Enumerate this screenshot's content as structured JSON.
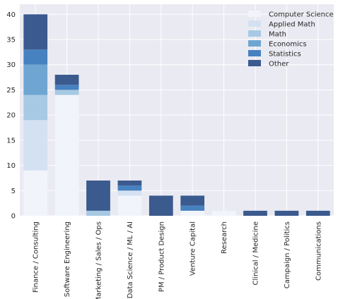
{
  "chart_data": {
    "type": "bar",
    "stacked": true,
    "categories": [
      "Finance / Consulting",
      "Software Engineering",
      "Marketing / Sales / Ops",
      "Data Science / ML / AI",
      "PM / Product Design",
      "Venture Capital",
      "Research",
      "Clinical / Medicine",
      "Campaign / Politics",
      "Communications"
    ],
    "series": [
      {
        "name": "Computer Science",
        "values": [
          9,
          24,
          0,
          4,
          0,
          1,
          1,
          0,
          0,
          0
        ],
        "color": "#f1f5fb"
      },
      {
        "name": "Applied Math",
        "values": [
          10,
          0,
          0,
          1,
          0,
          0,
          0,
          0,
          0,
          0
        ],
        "color": "#d3e1f2"
      },
      {
        "name": "Math",
        "values": [
          5,
          1,
          1,
          0,
          0,
          0,
          0,
          0,
          0,
          0
        ],
        "color": "#a7c9e3"
      },
      {
        "name": "Economics",
        "values": [
          6,
          0,
          0,
          0,
          0,
          0,
          0,
          0,
          0,
          0
        ],
        "color": "#6fa6d1"
      },
      {
        "name": "Statistics",
        "values": [
          3,
          1,
          0,
          1,
          0,
          1,
          0,
          0,
          0,
          0
        ],
        "color": "#4681c0"
      },
      {
        "name": "Other",
        "values": [
          7,
          2,
          6,
          1,
          4,
          2,
          0,
          1,
          1,
          1
        ],
        "color": "#3b5a8e"
      }
    ],
    "yticks": [
      0,
      5,
      10,
      15,
      20,
      25,
      30,
      35,
      40
    ],
    "ylim": [
      0,
      42
    ],
    "grid": true,
    "legend_position": "top-right",
    "background_color": "#eaeaf2",
    "title": "",
    "xlabel": "",
    "ylabel": ""
  }
}
